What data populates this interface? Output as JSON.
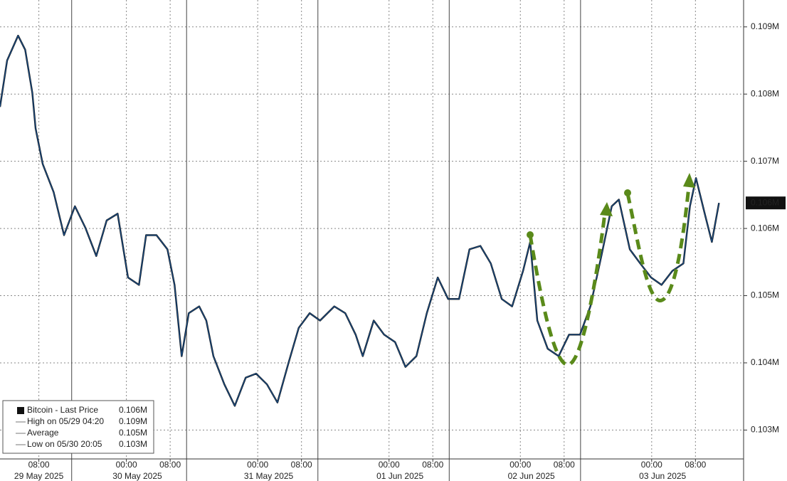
{
  "chart_data": {
    "type": "line",
    "series": [
      {
        "name": "Bitcoin - Last Price",
        "color": "#1a4f8a",
        "x": [
          0.9,
          2.2,
          4.2,
          5.5,
          6.8,
          7.4,
          8.7,
          10.7,
          12.6,
          14.6,
          16.5,
          18.5,
          20.4,
          22.4,
          24.3,
          26.3,
          27.6,
          29.5,
          31.5,
          32.8,
          34.1,
          35.4,
          37.3,
          38.6,
          39.9,
          41.9,
          43.8,
          45.8,
          47.7,
          49.7,
          51.6,
          53.6,
          55.5,
          57.5,
          59.4,
          62.0,
          64.0,
          65.9,
          67.2,
          69.2,
          71.1,
          73.1,
          75.0,
          77.0,
          78.9,
          80.9,
          82.8,
          84.8,
          86.7,
          88.7,
          90.6,
          92.6,
          94.5,
          96.5,
          97.8,
          99.1,
          101.0,
          103.0,
          104.9,
          106.9,
          108.8,
          110.8,
          112.7,
          114.0,
          116.0,
          117.9,
          119.9,
          121.8,
          123.8,
          125.8,
          127.0,
          128.1,
          129.7,
          131.0,
          132.3
        ],
        "values": [
          0.10781,
          0.1085,
          0.10887,
          0.10866,
          0.10802,
          0.10749,
          0.10696,
          0.10654,
          0.1059,
          0.10633,
          0.10601,
          0.10559,
          0.10612,
          0.10622,
          0.10527,
          0.10516,
          0.1059,
          0.1059,
          0.10569,
          0.10516,
          0.1041,
          0.10474,
          0.10484,
          0.10463,
          0.1041,
          0.10368,
          0.10336,
          0.10378,
          0.10384,
          0.10368,
          0.10341,
          0.10399,
          0.10452,
          0.10474,
          0.10463,
          0.10484,
          0.10474,
          0.10442,
          0.1041,
          0.10463,
          0.10442,
          0.10431,
          0.10394,
          0.1041,
          0.10474,
          0.10527,
          0.10495,
          0.10495,
          0.10569,
          0.10574,
          0.10548,
          0.10495,
          0.10484,
          0.10537,
          0.1058,
          0.10463,
          0.10421,
          0.1041,
          0.10442,
          0.10442,
          0.10484,
          0.10559,
          0.10633,
          0.10643,
          0.10569,
          0.10548,
          0.10527,
          0.10516,
          0.10537,
          0.10548,
          0.10633,
          0.10675,
          0.10622,
          0.1058,
          0.10638
        ]
      }
    ],
    "xlim": [
      0.9,
      136.8
    ],
    "ylim": [
      0.10257,
      0.1094
    ],
    "xticks": [
      {
        "value": 8,
        "label": "08:00"
      },
      {
        "value": 24,
        "label": "00:00"
      },
      {
        "value": 32,
        "label": "08:00"
      },
      {
        "value": 48,
        "label": "00:00"
      },
      {
        "value": 56,
        "label": "08:00"
      },
      {
        "value": 72,
        "label": "00:00"
      },
      {
        "value": 80,
        "label": "08:00"
      },
      {
        "value": 96,
        "label": "00:00"
      },
      {
        "value": 104,
        "label": "08:00"
      },
      {
        "value": 120,
        "label": "00:00"
      },
      {
        "value": 128,
        "label": "08:00"
      }
    ],
    "x_day_labels": [
      {
        "value": 8,
        "label": "29 May 2025"
      },
      {
        "value": 26,
        "label": "30 May 2025"
      },
      {
        "value": 50,
        "label": "31 May 2025"
      },
      {
        "value": 74,
        "label": "01 Jun 2025"
      },
      {
        "value": 98,
        "label": "02 Jun 2025"
      },
      {
        "value": 122,
        "label": "03 Jun 2025"
      }
    ],
    "yticks": [
      {
        "value": 0.103,
        "label": "0.103M"
      },
      {
        "value": 0.104,
        "label": "0.104M"
      },
      {
        "value": 0.105,
        "label": "0.105M"
      },
      {
        "value": 0.106,
        "label": "0.106M"
      },
      {
        "value": 0.107,
        "label": "0.107M"
      },
      {
        "value": 0.108,
        "label": "0.108M"
      },
      {
        "value": 0.109,
        "label": "0.109M"
      }
    ],
    "grid": true,
    "legend": [
      {
        "label": "Bitcoin - Last Price",
        "value": "0.106M"
      },
      {
        "label": "High on 05/29 04:20",
        "value": "0.109M"
      },
      {
        "label": "Average",
        "value": "0.105M"
      },
      {
        "label": "Low on 05/30 20:05",
        "value": "0.103M"
      }
    ],
    "legend_position": "lower left"
  }
}
